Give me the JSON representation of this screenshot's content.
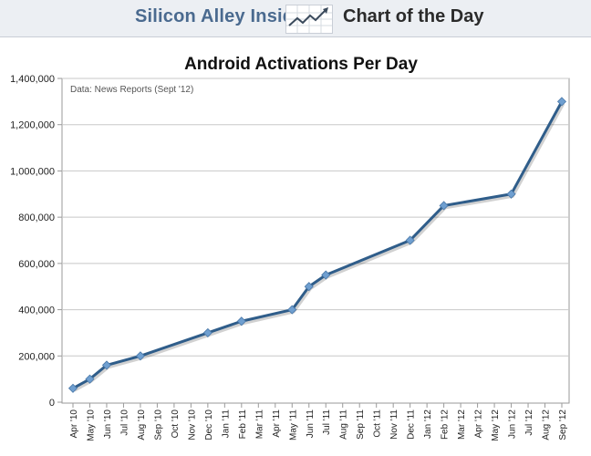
{
  "header": {
    "brand": "Silicon Alley Insider",
    "feature": "Chart of the Day",
    "logo_icon": "trend-chart-icon"
  },
  "colors": {
    "line": "#2f5d8a",
    "marker": "#6f9fd0",
    "grid": "#c8c8c8",
    "banner": "#eceff3"
  },
  "chart_data": {
    "type": "line",
    "title": "Android Activations Per Day",
    "source": "Data: News Reports (Sept '12)",
    "xlabel": "",
    "ylabel": "",
    "ylim": [
      0,
      1400000
    ],
    "yticks": [
      "0",
      "200,000",
      "400,000",
      "600,000",
      "800,000",
      "1,000,000",
      "1,200,000",
      "1,400,000"
    ],
    "categories": [
      "Apr '10",
      "May '10",
      "Jun '10",
      "Jul '10",
      "Aug '10",
      "Sep '10",
      "Oct '10",
      "Nov '10",
      "Dec '10",
      "Jan '11",
      "Feb '11",
      "Mar '11",
      "Apr '11",
      "May '11",
      "Jun '11",
      "Jul '11",
      "Aug '11",
      "Sep '11",
      "Oct '11",
      "Nov '11",
      "Dec '11",
      "Jan '12",
      "Feb '12",
      "Mar '12",
      "Apr '12",
      "May '12",
      "Jun '12",
      "Jul '12",
      "Aug '12",
      "Sep '12"
    ],
    "grid": true,
    "series": [
      {
        "name": "Android Activations Per Day",
        "points": [
          {
            "x": "Apr '10",
            "y": 60000
          },
          {
            "x": "May '10",
            "y": 100000
          },
          {
            "x": "Jun '10",
            "y": 160000
          },
          {
            "x": "Aug '10",
            "y": 200000
          },
          {
            "x": "Dec '10",
            "y": 300000
          },
          {
            "x": "Feb '11",
            "y": 350000
          },
          {
            "x": "May '11",
            "y": 400000
          },
          {
            "x": "Jun '11",
            "y": 500000
          },
          {
            "x": "Jul '11",
            "y": 550000
          },
          {
            "x": "Dec '11",
            "y": 700000
          },
          {
            "x": "Feb '12",
            "y": 850000
          },
          {
            "x": "Jun '12",
            "y": 900000
          },
          {
            "x": "Sep '12",
            "y": 1300000
          }
        ]
      }
    ]
  }
}
